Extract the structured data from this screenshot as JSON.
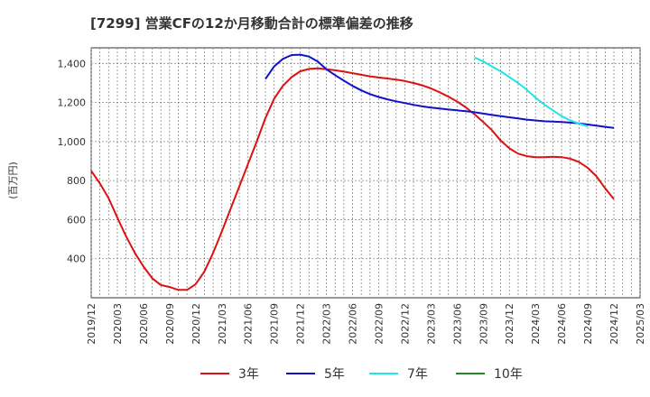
{
  "chart_data": {
    "type": "line",
    "title": "[7299]  営業CFの12か月移動合計の標準偏差の推移",
    "ylabel": "(百万円)",
    "xlabel": "",
    "ylim": [
      200,
      1480
    ],
    "yticks": [
      400,
      600,
      800,
      1000,
      1200,
      1400
    ],
    "ytick_labels": [
      "400",
      "600",
      "800",
      "1,000",
      "1,200",
      "1,400"
    ],
    "xticks": [
      "2019/12",
      "2020/03",
      "2020/06",
      "2020/09",
      "2020/12",
      "2021/03",
      "2021/06",
      "2021/09",
      "2021/12",
      "2022/03",
      "2022/06",
      "2022/09",
      "2022/12",
      "2023/03",
      "2023/06",
      "2023/09",
      "2023/12",
      "2024/03",
      "2024/06",
      "2024/09",
      "2024/12",
      "2025/03"
    ],
    "grid": true,
    "legend_position": "bottom",
    "series": [
      {
        "name": "3年",
        "color": "#dd1111",
        "start": "2019/12",
        "values": [
          850,
          785,
          710,
          610,
          515,
          430,
          360,
          300,
          265,
          255,
          240,
          240,
          270,
          335,
          430,
          540,
          655,
          770,
          885,
          1000,
          1120,
          1220,
          1285,
          1330,
          1360,
          1372,
          1375,
          1370,
          1365,
          1358,
          1350,
          1342,
          1334,
          1328,
          1323,
          1317,
          1310,
          1300,
          1288,
          1272,
          1252,
          1230,
          1205,
          1175,
          1140,
          1100,
          1058,
          1005,
          965,
          938,
          925,
          920,
          920,
          922,
          920,
          912,
          895,
          865,
          822,
          760,
          705
        ]
      },
      {
        "name": "5年",
        "color": "#1111cc",
        "start": "2021/08",
        "values": [
          1320,
          1385,
          1423,
          1443,
          1445,
          1435,
          1410,
          1370,
          1340,
          1312,
          1285,
          1262,
          1243,
          1228,
          1216,
          1206,
          1197,
          1188,
          1180,
          1174,
          1169,
          1164,
          1160,
          1155,
          1150,
          1143,
          1136,
          1130,
          1124,
          1118,
          1112,
          1108,
          1104,
          1102,
          1100,
          1097,
          1093,
          1087,
          1081,
          1075,
          1070
        ]
      },
      {
        "name": "7年",
        "color": "#22e5e5",
        "start": "2023/08",
        "values": [
          1430,
          1410,
          1385,
          1360,
          1330,
          1300,
          1265,
          1225,
          1190,
          1160,
          1130,
          1108,
          1092,
          1078
        ]
      },
      {
        "name": "10年",
        "color": "#228822",
        "start": "2024/09",
        "values": []
      }
    ]
  }
}
